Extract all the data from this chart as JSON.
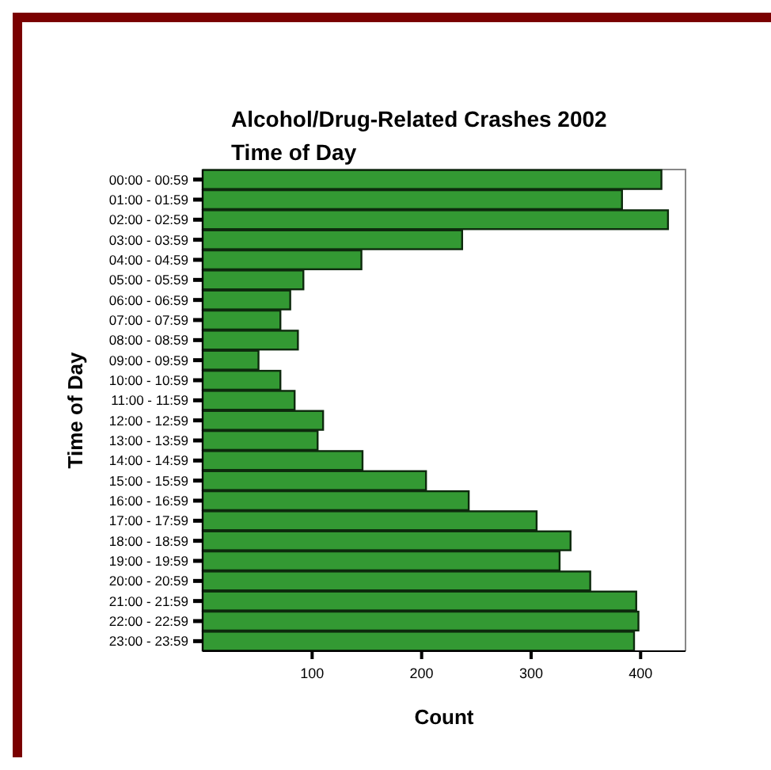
{
  "chart_data": {
    "type": "bar",
    "orientation": "horizontal",
    "title": "Alcohol/Drug-Related Crashes 2002",
    "subtitle": "Time of Day",
    "xlabel": "Count",
    "ylabel": "Time of Day",
    "categories": [
      "00:00 - 00:59",
      "01:00 - 01:59",
      "02:00 - 02:59",
      "03:00 - 03:59",
      "04:00 - 04:59",
      "05:00 - 05:59",
      "06:00 - 06:59",
      "07:00 - 07:59",
      "08:00 - 08:59",
      "09:00 - 09:59",
      "10:00 - 10:59",
      "11:00 - 11:59",
      "12:00 - 12:59",
      "13:00 - 13:59",
      "14:00 - 14:59",
      "15:00 - 15:59",
      "16:00 - 16:59",
      "17:00 - 17:59",
      "18:00 - 18:59",
      "19:00 - 19:59",
      "20:00 - 20:59",
      "21:00 - 21:59",
      "22:00 - 22:59",
      "23:00 - 23:59"
    ],
    "values": [
      419,
      383,
      425,
      237,
      145,
      92,
      80,
      71,
      87,
      51,
      71,
      84,
      110,
      105,
      146,
      204,
      243,
      305,
      336,
      326,
      354,
      396,
      398,
      394
    ],
    "color": "#339933",
    "xlim": [
      0,
      441
    ],
    "xticks": [
      100,
      200,
      300,
      400
    ],
    "grid": false
  }
}
